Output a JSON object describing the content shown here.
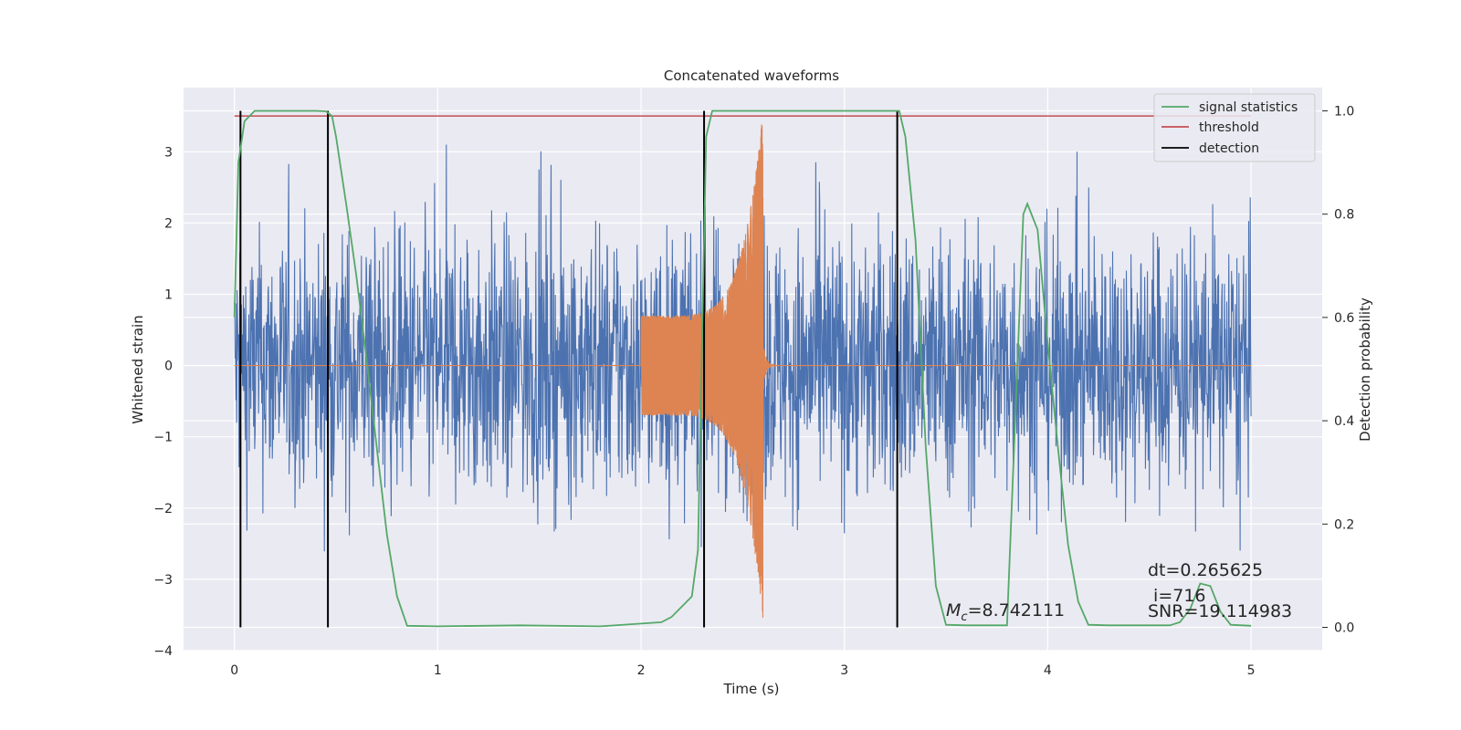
{
  "chart_data": {
    "type": "line",
    "title": "Concatenated waveforms",
    "xlabel": "Time (s)",
    "ylabel": "Whitened strain",
    "y2label": "Detection probability",
    "xlim": [
      -0.25,
      5.35
    ],
    "ylim": [
      -4.0,
      3.9
    ],
    "y2lim": [
      -0.045,
      1.045
    ],
    "xticks": [
      0,
      1,
      2,
      3,
      4,
      5
    ],
    "yticks": [
      -4,
      -3,
      -2,
      -1,
      0,
      1,
      2,
      3
    ],
    "y2ticks": [
      0.0,
      0.2,
      0.4,
      0.6,
      0.8,
      1.0
    ],
    "x_tick_labels": [
      "0",
      "1",
      "2",
      "3",
      "4",
      "5"
    ],
    "y_tick_labels": [
      "−4",
      "−3",
      "−2",
      "−1",
      "0",
      "1",
      "2",
      "3"
    ],
    "y2_tick_labels": [
      "0.0",
      "0.2",
      "0.4",
      "0.6",
      "0.8",
      "1.0"
    ],
    "grid": true,
    "legend_position": "top-right",
    "colors": {
      "background": "#eaeaf2",
      "grid": "#ffffff",
      "strain": "#4c72b0",
      "template": "#dd8452",
      "signal_statistics": "#55a868",
      "threshold": "#c44e52",
      "detection": "#000000"
    },
    "strain": {
      "x_range": [
        0.0,
        5.0
      ],
      "envelope": [
        [
          0.0,
          2.9
        ],
        [
          0.5,
          3.0
        ],
        [
          1.0,
          3.1
        ],
        [
          1.5,
          3.1
        ],
        [
          2.0,
          3.0
        ],
        [
          2.5,
          3.1
        ],
        [
          3.0,
          3.1
        ],
        [
          3.5,
          3.0
        ],
        [
          4.0,
          3.0
        ],
        [
          4.5,
          3.0
        ],
        [
          5.0,
          2.9
        ]
      ],
      "minimum": -3.45
    },
    "template": {
      "segments": [
        {
          "x_range": [
            0.0,
            2.0
          ],
          "value": 0.0
        },
        {
          "x_range": [
            2.0,
            2.6
          ],
          "amplitude_start": 0.7,
          "amplitude_peak": 3.6
        },
        {
          "x_range": [
            2.6,
            5.0
          ],
          "value": 0.0
        }
      ]
    },
    "series": [
      {
        "name": "signal statistics",
        "axis": "right",
        "x": [
          0.0,
          0.02,
          0.05,
          0.1,
          0.2,
          0.3,
          0.4,
          0.45,
          0.48,
          0.5,
          0.55,
          0.6,
          0.65,
          0.7,
          0.75,
          0.8,
          0.85,
          1.0,
          1.4,
          1.8,
          2.1,
          2.15,
          2.2,
          2.25,
          2.28,
          2.3,
          2.32,
          2.35,
          2.4,
          2.6,
          3.0,
          3.2,
          3.27,
          3.3,
          3.35,
          3.4,
          3.45,
          3.5,
          3.6,
          3.7,
          3.8,
          3.85,
          3.88,
          3.9,
          3.95,
          4.0,
          4.05,
          4.1,
          4.15,
          4.2,
          4.3,
          4.5,
          4.6,
          4.65,
          4.7,
          4.75,
          4.8,
          4.85,
          4.9,
          5.0
        ],
        "values": [
          0.6,
          0.9,
          0.98,
          1.0,
          1.0,
          1.0,
          1.0,
          0.999,
          0.99,
          0.95,
          0.82,
          0.68,
          0.52,
          0.35,
          0.18,
          0.06,
          0.003,
          0.002,
          0.004,
          0.002,
          0.01,
          0.02,
          0.04,
          0.06,
          0.15,
          0.55,
          0.95,
          1.0,
          1.0,
          1.0,
          1.0,
          1.0,
          1.0,
          0.95,
          0.75,
          0.35,
          0.08,
          0.005,
          0.004,
          0.004,
          0.004,
          0.5,
          0.8,
          0.82,
          0.77,
          0.55,
          0.35,
          0.16,
          0.05,
          0.005,
          0.004,
          0.004,
          0.004,
          0.01,
          0.035,
          0.085,
          0.08,
          0.03,
          0.005,
          0.003
        ]
      },
      {
        "name": "threshold",
        "axis": "right",
        "x": [
          0.0,
          5.0
        ],
        "values": [
          0.99,
          0.99
        ]
      },
      {
        "name": "detection",
        "axis": "right",
        "x": [
          0.03,
          0.46,
          2.31,
          3.26
        ],
        "values": [
          [
            0.0,
            1.0
          ],
          [
            0.0,
            1.0
          ],
          [
            0.0,
            1.0
          ],
          [
            0.0,
            1.0
          ]
        ]
      }
    ],
    "legend": [
      "signal statistics",
      "threshold",
      "detection"
    ],
    "annotations": {
      "mc_symbol": "M",
      "mc_subscript": "c",
      "mc_value": "=8.742111",
      "dt": "dt=0.265625",
      "i": " i=716",
      "snr": "SNR=19.114983"
    }
  }
}
